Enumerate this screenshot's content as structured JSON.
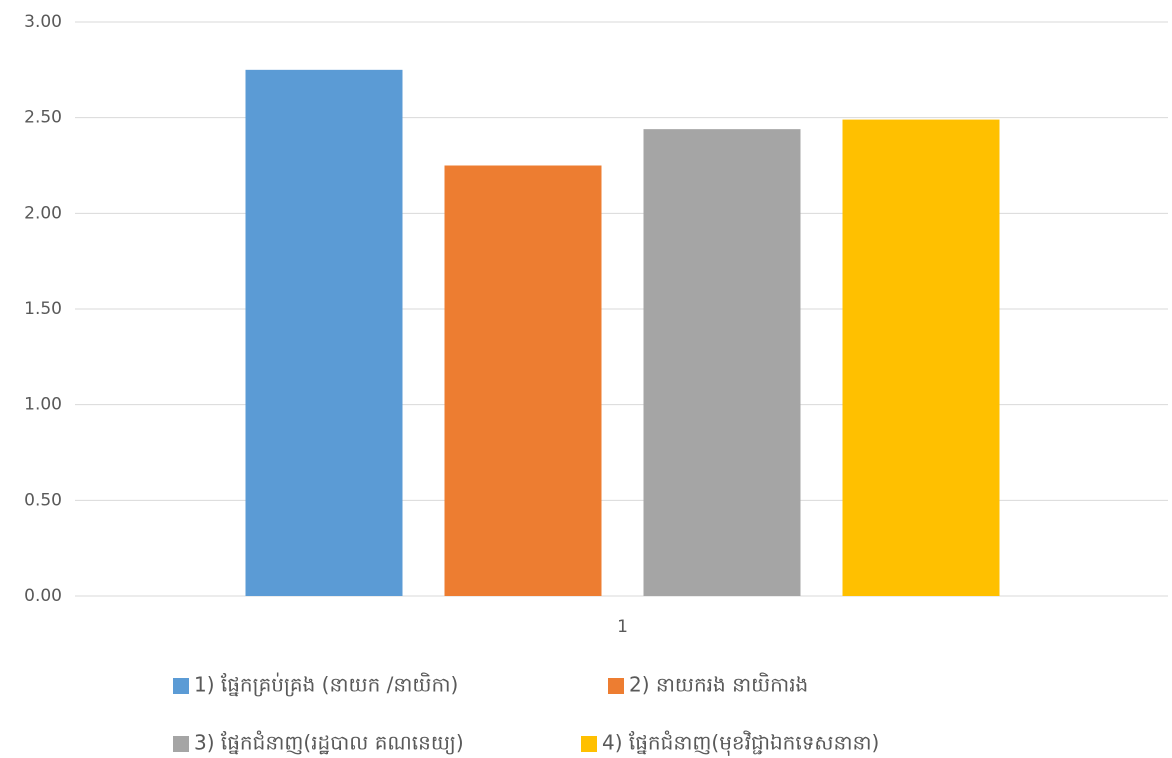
{
  "chart_data": {
    "type": "bar",
    "categories": [
      "1"
    ],
    "series": [
      {
        "name": "1) ផ្នែកគ្រប់គ្រង (នាយក /នាយិកា)",
        "color": "#5b9bd5",
        "values": [
          2.75
        ]
      },
      {
        "name": "2) នាយករង នាយិការង",
        "color": "#ed7d31",
        "values": [
          2.25
        ]
      },
      {
        "name": "3) ផ្នែកជំនាញ(រដ្ឋបាល គណនេយ្យ)",
        "color": "#a5a5a5",
        "values": [
          2.44
        ]
      },
      {
        "name": "4) ផ្នែកជំនាញ(មុខវិជ្ជាឯកទេសនានា)",
        "color": "#ffc000",
        "values": [
          2.49
        ]
      }
    ],
    "ylim": [
      0,
      3
    ],
    "yticks": [
      {
        "value": 0,
        "label": "0.00"
      },
      {
        "value": 0.5,
        "label": "0.50"
      },
      {
        "value": 1,
        "label": "1.00"
      },
      {
        "value": 1.5,
        "label": "1.50"
      },
      {
        "value": 2,
        "label": "2.00"
      },
      {
        "value": 2.5,
        "label": "2.50"
      },
      {
        "value": 3,
        "label": "3.00"
      }
    ],
    "grid": true,
    "legend": "bottom"
  }
}
